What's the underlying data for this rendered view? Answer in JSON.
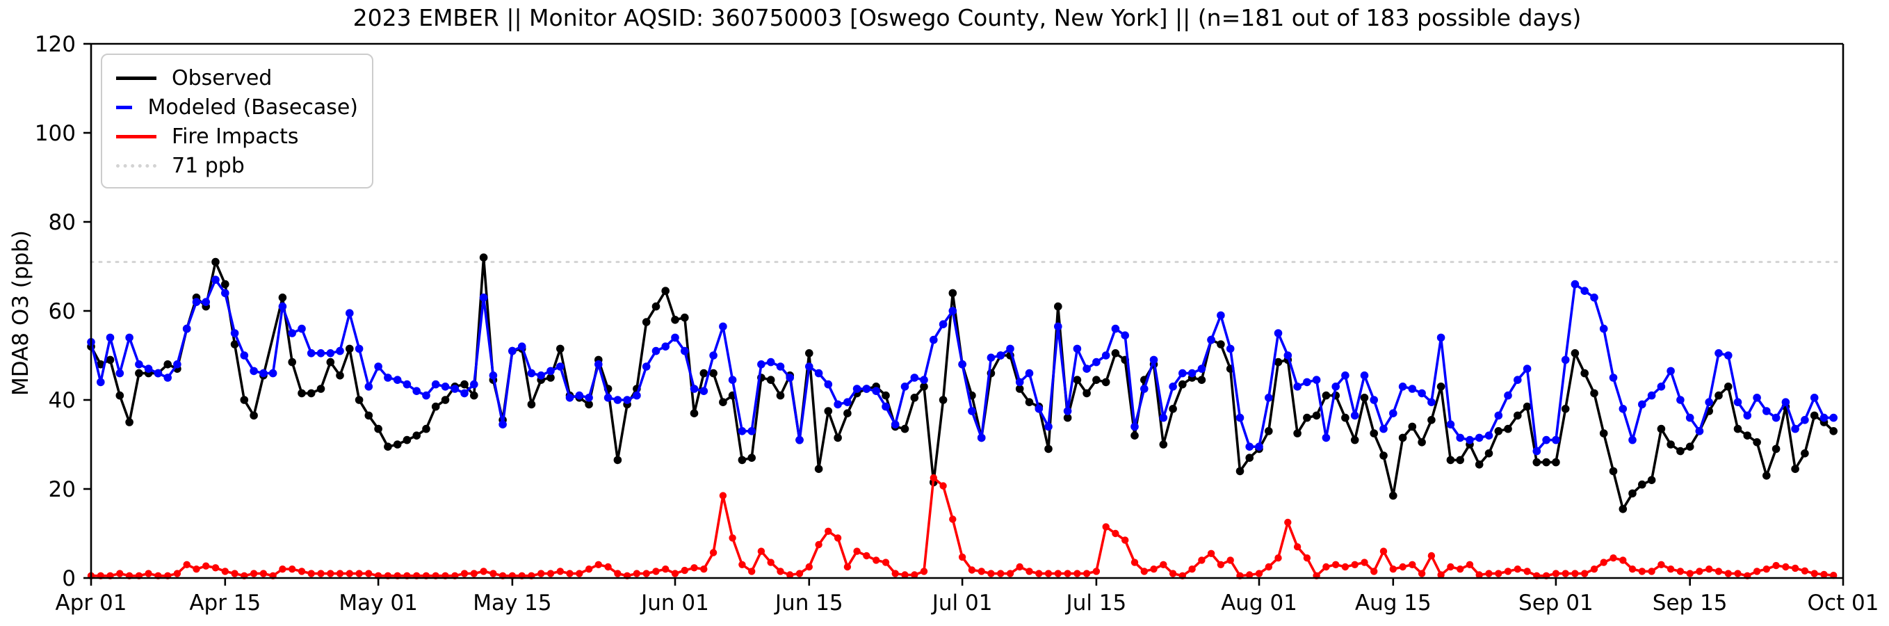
{
  "title": "2023 EMBER || Monitor AQSID: 360750003 [Oswego County, New York] || (n=181 out of 183 possible days)",
  "ylabel": "MDA8 O3 (ppb)",
  "legend": [
    {
      "label": "Observed",
      "color": "#000000",
      "style": "solid"
    },
    {
      "label": "Modeled (Basecase)",
      "color": "#0000ff",
      "style": "solid"
    },
    {
      "label": "Fire Impacts",
      "color": "#ff0000",
      "style": "solid"
    },
    {
      "label": "71 ppb",
      "color": "#d3d3d3",
      "style": "dotted"
    }
  ],
  "chart_data": {
    "type": "line",
    "title": "2023 EMBER || Monitor AQSID: 360750003 [Oswego County, New York] || (n=181 out of 183 possible days)",
    "xlabel": "",
    "ylabel": "MDA8 O3 (ppb)",
    "ylim": [
      0,
      120
    ],
    "y_ticks": [
      0,
      20,
      40,
      60,
      80,
      100,
      120
    ],
    "x_tick_labels": [
      "Apr 01",
      "Apr 15",
      "May 01",
      "May 15",
      "Jun 01",
      "Jun 15",
      "Jul 01",
      "Jul 15",
      "Aug 01",
      "Aug 15",
      "Sep 01",
      "Sep 15",
      "Oct 01"
    ],
    "x_tick_days": [
      0,
      14,
      30,
      44,
      61,
      75,
      91,
      105,
      122,
      136,
      153,
      167,
      183
    ],
    "n_days": 183,
    "start_date": "Apr 01",
    "end_date": "Sep 30",
    "threshold": {
      "value": 71,
      "label": "71 ppb",
      "color": "#d3d3d3"
    },
    "grid": false,
    "legend_position": "upper-left",
    "series": [
      {
        "name": "Observed",
        "color": "#000000",
        "marker": "circle",
        "values": [
          52,
          48,
          49,
          41,
          35,
          46,
          46,
          46,
          48,
          47,
          56,
          63,
          61,
          71,
          66,
          52.5,
          40,
          36.5,
          45.5,
          null,
          63,
          48.5,
          41.5,
          41.5,
          42.5,
          48.5,
          45.5,
          51.5,
          40,
          36.5,
          33.5,
          29.5,
          30,
          31,
          32,
          33.5,
          38.5,
          40,
          43,
          43.5,
          41,
          72,
          44.5,
          35.5,
          51,
          51.5,
          39,
          44.5,
          45,
          51.5,
          41,
          40.5,
          39,
          49,
          42.5,
          26.5,
          39,
          42.5,
          57.5,
          61,
          64.5,
          58,
          58.5,
          37,
          46,
          46,
          39.5,
          41,
          26.5,
          27,
          45,
          44.5,
          41,
          45.5,
          31,
          50.5,
          24.5,
          37.5,
          31.5,
          37,
          41.5,
          42.5,
          43,
          41,
          34,
          33.5,
          40.5,
          43,
          21.5,
          40,
          64,
          48,
          41,
          31.5,
          46,
          50,
          50,
          42.5,
          39.5,
          38.5,
          29,
          61,
          36,
          44.5,
          41.5,
          44.5,
          44,
          50.5,
          49,
          32,
          44.5,
          48,
          30,
          38,
          43.5,
          45,
          44.5,
          53.5,
          52.5,
          47,
          24,
          27,
          29,
          33,
          48.5,
          49,
          32.5,
          36,
          36.5,
          41,
          41,
          36,
          31,
          40.5,
          32.5,
          27.5,
          18.5,
          31.5,
          34,
          30.5,
          35.5,
          43,
          26.5,
          26.5,
          30,
          25.5,
          28,
          33,
          33.5,
          36.5,
          38.5,
          26,
          26,
          26,
          38,
          50.5,
          46,
          41.5,
          32.5,
          24,
          15.5,
          19,
          21,
          22,
          33.5,
          30,
          28.5,
          29.5,
          33,
          37.5,
          41,
          43,
          33.5,
          32,
          30.5,
          23,
          29,
          38.5,
          24.5,
          28,
          36.5,
          35,
          33
        ]
      },
      {
        "name": "Modeled (Basecase)",
        "color": "#0000ff",
        "marker": "circle",
        "values": [
          53,
          44,
          54,
          46,
          54,
          48,
          47,
          46,
          45,
          48,
          56,
          62,
          62,
          67,
          64,
          55,
          50,
          46.5,
          46,
          46,
          61,
          55,
          56,
          50.5,
          50.5,
          50.5,
          51,
          59.5,
          51.5,
          43,
          47.5,
          45,
          44.5,
          43.5,
          42,
          41,
          43.5,
          43,
          42.5,
          41.5,
          43.5,
          63,
          45.5,
          34.5,
          51,
          52,
          46,
          45.5,
          46.5,
          47.5,
          40.5,
          41,
          40.5,
          48,
          40.5,
          40,
          40,
          41,
          47.5,
          51,
          52,
          54,
          51,
          42.5,
          42,
          50,
          56.5,
          44.5,
          33,
          33,
          48,
          48.5,
          47.5,
          45,
          31,
          47.5,
          46,
          43.5,
          39,
          39.5,
          42.5,
          42.5,
          42,
          38.5,
          34.5,
          43,
          45,
          44.5,
          53.5,
          57,
          60,
          48,
          37.5,
          31.5,
          49.5,
          50,
          51.5,
          44,
          46,
          38,
          34,
          56.5,
          37.5,
          51.5,
          47,
          48.5,
          50,
          56,
          54.5,
          34,
          42.5,
          49,
          36,
          43,
          46,
          46,
          47,
          53.5,
          59,
          51.5,
          36,
          29.5,
          29.5,
          40.5,
          55,
          50,
          43,
          44,
          44.5,
          31.5,
          43,
          45.5,
          36.5,
          45.5,
          40,
          33.5,
          37,
          43,
          42.5,
          41.5,
          39.5,
          54,
          34.5,
          31.5,
          31,
          31.5,
          32,
          36.5,
          41,
          44.5,
          47,
          28.5,
          31,
          31,
          49,
          66,
          64.5,
          63,
          56,
          45,
          38,
          31,
          39,
          41,
          43,
          46.5,
          40,
          36,
          33,
          39.5,
          50.5,
          50,
          39.5,
          36.5,
          40.5,
          37.5,
          36,
          39.5,
          33.5,
          35.5,
          40.5,
          36,
          36
        ]
      },
      {
        "name": "Fire Impacts",
        "color": "#ff0000",
        "marker": "circle",
        "values": [
          0.5,
          0.5,
          0.5,
          1,
          0.5,
          0.5,
          1,
          0.5,
          0.5,
          1,
          3,
          2,
          2.7,
          2.3,
          1.5,
          1,
          0.5,
          1,
          1,
          0.5,
          2,
          2,
          1.5,
          1,
          1,
          1,
          1,
          1,
          1,
          1,
          0.5,
          0.5,
          0.5,
          0.5,
          0.5,
          0.5,
          0.5,
          0.5,
          0.5,
          1,
          1,
          1.5,
          1,
          0.5,
          0.5,
          0.5,
          0.5,
          1,
          1,
          1.5,
          1,
          1,
          2,
          3,
          2.5,
          1,
          0.5,
          1,
          1,
          1.5,
          2,
          1,
          1.7,
          2.3,
          2,
          5.7,
          18.5,
          9,
          3,
          1.5,
          6,
          3.5,
          1.5,
          0.7,
          1,
          2.5,
          7.5,
          10.5,
          9,
          2.5,
          6,
          5,
          4,
          3.5,
          1,
          0.7,
          0.7,
          1.5,
          22.5,
          20.7,
          13.2,
          4.7,
          1.8,
          1.5,
          1,
          1,
          1,
          2.5,
          1.5,
          1,
          1,
          1,
          1,
          1,
          1,
          1.5,
          11.5,
          10,
          8.5,
          3.5,
          1.5,
          2,
          3,
          1,
          0.5,
          2,
          4,
          5.5,
          3,
          4,
          0.5,
          0.7,
          1,
          2.5,
          4.5,
          12.5,
          7,
          4.5,
          0.5,
          2.5,
          3,
          2.5,
          3,
          3.5,
          1.5,
          6,
          2,
          2.5,
          3,
          1,
          5,
          0.7,
          2.5,
          2,
          3,
          0.7,
          1,
          1,
          1.5,
          2,
          1.5,
          0.5,
          0.5,
          1,
          1,
          1,
          1,
          2,
          3.5,
          4.5,
          4,
          2,
          1.5,
          1.5,
          3,
          2,
          1.5,
          1,
          1.5,
          2,
          1.5,
          1,
          1,
          0.5,
          1.5,
          2,
          2.8,
          2.5,
          2.2,
          1.6,
          1,
          0.8,
          0.6
        ]
      }
    ]
  }
}
